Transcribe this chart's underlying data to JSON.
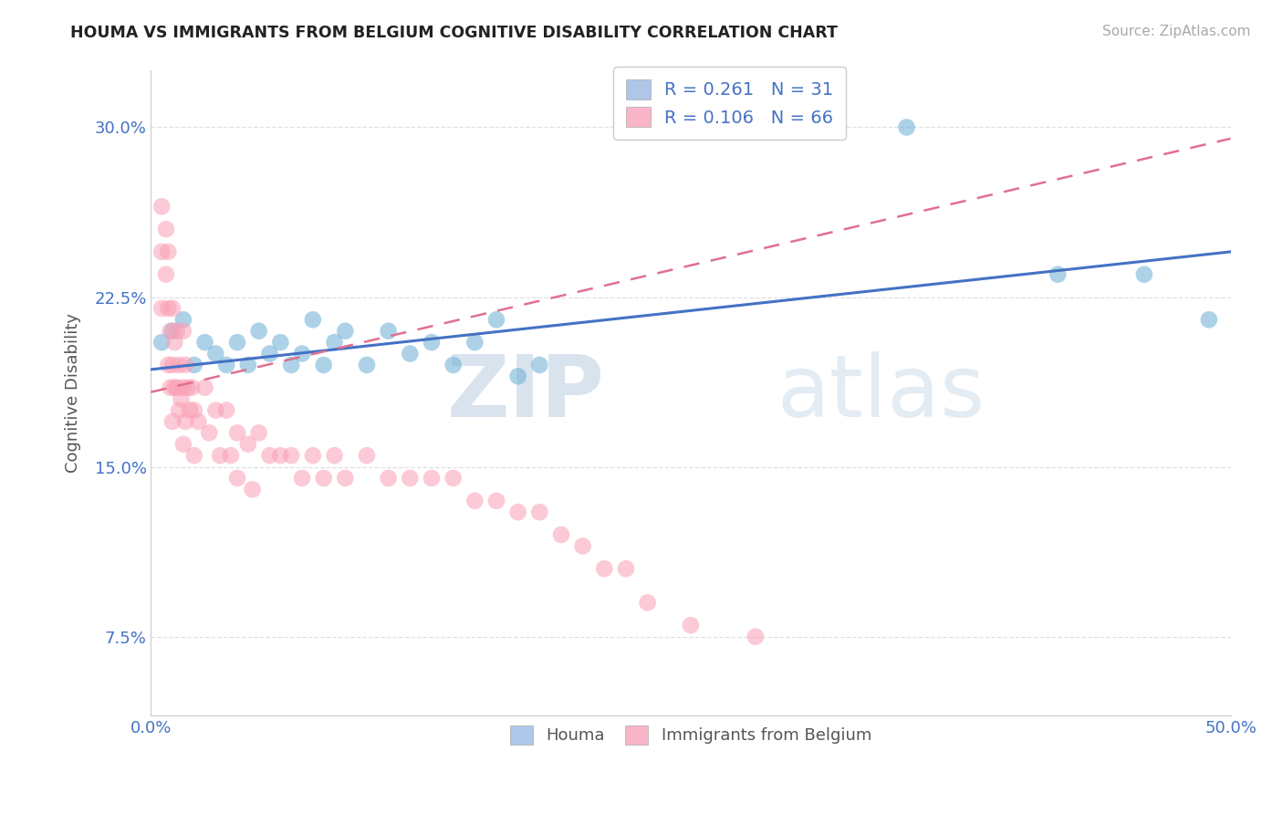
{
  "title": "HOUMA VS IMMIGRANTS FROM BELGIUM COGNITIVE DISABILITY CORRELATION CHART",
  "source": "Source: ZipAtlas.com",
  "ylabel": "Cognitive Disability",
  "xlabel": "",
  "xlim": [
    0.0,
    0.5
  ],
  "ylim": [
    0.04,
    0.325
  ],
  "yticks": [
    0.075,
    0.15,
    0.225,
    0.3
  ],
  "ytick_labels": [
    "7.5%",
    "15.0%",
    "22.5%",
    "30.0%"
  ],
  "houma_R": 0.261,
  "houma_N": 31,
  "belgium_R": 0.106,
  "belgium_N": 66,
  "houma_color": "#6baed6",
  "belgium_color": "#fa9fb5",
  "houma_scatter_x": [
    0.005,
    0.01,
    0.015,
    0.02,
    0.025,
    0.03,
    0.035,
    0.04,
    0.045,
    0.05,
    0.055,
    0.06,
    0.065,
    0.07,
    0.075,
    0.08,
    0.085,
    0.09,
    0.1,
    0.11,
    0.12,
    0.13,
    0.14,
    0.15,
    0.16,
    0.17,
    0.18,
    0.35,
    0.42,
    0.46,
    0.49
  ],
  "houma_scatter_y": [
    0.205,
    0.21,
    0.215,
    0.195,
    0.205,
    0.2,
    0.195,
    0.205,
    0.195,
    0.21,
    0.2,
    0.205,
    0.195,
    0.2,
    0.215,
    0.195,
    0.205,
    0.21,
    0.195,
    0.21,
    0.2,
    0.205,
    0.195,
    0.205,
    0.215,
    0.19,
    0.195,
    0.3,
    0.235,
    0.235,
    0.215
  ],
  "belgium_scatter_x": [
    0.005,
    0.005,
    0.005,
    0.007,
    0.007,
    0.008,
    0.008,
    0.008,
    0.009,
    0.009,
    0.01,
    0.01,
    0.01,
    0.011,
    0.011,
    0.012,
    0.012,
    0.013,
    0.013,
    0.014,
    0.015,
    0.015,
    0.015,
    0.016,
    0.016,
    0.017,
    0.018,
    0.019,
    0.02,
    0.02,
    0.022,
    0.025,
    0.027,
    0.03,
    0.032,
    0.035,
    0.037,
    0.04,
    0.04,
    0.045,
    0.047,
    0.05,
    0.055,
    0.06,
    0.065,
    0.07,
    0.075,
    0.08,
    0.085,
    0.09,
    0.1,
    0.11,
    0.12,
    0.13,
    0.14,
    0.15,
    0.16,
    0.17,
    0.18,
    0.19,
    0.2,
    0.21,
    0.22,
    0.23,
    0.25,
    0.28
  ],
  "belgium_scatter_y": [
    0.265,
    0.245,
    0.22,
    0.255,
    0.235,
    0.245,
    0.22,
    0.195,
    0.21,
    0.185,
    0.22,
    0.195,
    0.17,
    0.205,
    0.185,
    0.21,
    0.185,
    0.195,
    0.175,
    0.18,
    0.21,
    0.185,
    0.16,
    0.195,
    0.17,
    0.185,
    0.175,
    0.185,
    0.175,
    0.155,
    0.17,
    0.185,
    0.165,
    0.175,
    0.155,
    0.175,
    0.155,
    0.165,
    0.145,
    0.16,
    0.14,
    0.165,
    0.155,
    0.155,
    0.155,
    0.145,
    0.155,
    0.145,
    0.155,
    0.145,
    0.155,
    0.145,
    0.145,
    0.145,
    0.145,
    0.135,
    0.135,
    0.13,
    0.13,
    0.12,
    0.115,
    0.105,
    0.105,
    0.09,
    0.08,
    0.075
  ],
  "background_color": "#ffffff",
  "grid_color": "#e0e0e0",
  "watermark_zip": "ZIP",
  "watermark_atlas": "atlas",
  "legend_box_color_houma": "#aec6e8",
  "legend_box_color_belgium": "#f9b4c8",
  "line_color_houma": "#4472c4",
  "line_color_belgium": "#e07090"
}
